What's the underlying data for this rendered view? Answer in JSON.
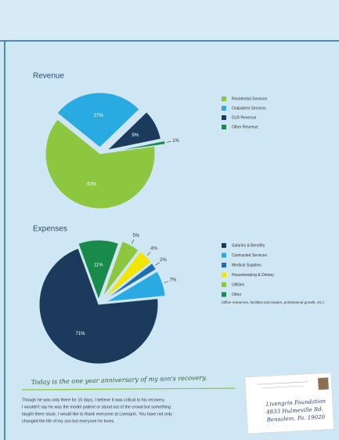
{
  "chart_data": [
    {
      "type": "pie",
      "title": "Revenue",
      "categories": [
        "Residential Services",
        "Outpatient Services",
        "DLR Revenue",
        "Other Revenue"
      ],
      "values": [
        63,
        27,
        9,
        1
      ],
      "value_labels": [
        "63%",
        "27%",
        "9%",
        "1%"
      ],
      "colors": [
        "#8dc63f",
        "#29abe2",
        "#1b3a5c",
        "#1a8a4a"
      ]
    },
    {
      "type": "pie",
      "title": "Expenses",
      "categories": [
        "Salaries & Benefits",
        "Contracted Services",
        "Medical Supplies",
        "Housekeeping & Dietary",
        "Utilities",
        "Other"
      ],
      "values": [
        71,
        7,
        2,
        4,
        5,
        11
      ],
      "value_labels": [
        "71%",
        "7%",
        "2%",
        "4%",
        "5%",
        "11%"
      ],
      "colors": [
        "#1b3a5c",
        "#29abe2",
        "#1e6fb0",
        "#f2e600",
        "#8dc63f",
        "#1a8a4a"
      ],
      "note": "(office resources, facilities and repairs, professional growth, etc.)"
    }
  ],
  "document": {
    "handwritten": "Today is the one year anniversary of my son's recovery.",
    "paragraph": [
      "Though he was only there for 15 days, I believe it was critical to his recovery.",
      "I wouldn't say he was the model patient or stood out of the crowd but something",
      "taught there stuck.  I would like to thank everyone at Livengrin. You have not only",
      "changed the life of my son but everyone he loves."
    ],
    "postcard": [
      "Livengrin Foundation",
      "4833 Hulmeville Rd.",
      "Bensalem, Pa. 19020"
    ]
  }
}
